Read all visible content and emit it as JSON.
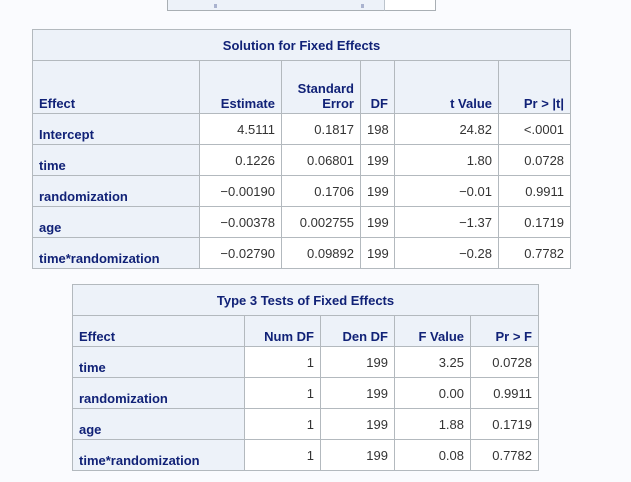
{
  "page": {
    "background": "#FAFBFE"
  },
  "colors": {
    "header_bg": "#EDF2F9",
    "header_text": "#112277",
    "data_bg": "#FFFFFF",
    "data_text": "#333333",
    "border": "#B3B9BE"
  },
  "tables": [
    {
      "title": "Solution for Fixed Effects",
      "columns": [
        "Effect",
        "Estimate",
        "Standard\nError",
        "DF",
        "t Value",
        "Pr > |t|"
      ],
      "rows": [
        [
          "Intercept",
          "4.5111",
          "0.1817",
          "198",
          "24.82",
          "<.0001"
        ],
        [
          "time",
          "0.1226",
          "0.06801",
          "199",
          "1.80",
          "0.0728"
        ],
        [
          "randomization",
          "−0.00190",
          "0.1706",
          "199",
          "−0.01",
          "0.9911"
        ],
        [
          "age",
          "−0.00378",
          "0.002755",
          "199",
          "−1.37",
          "0.1719"
        ],
        [
          "time*randomization",
          "−0.02790",
          "0.09892",
          "199",
          "−0.28",
          "0.7782"
        ]
      ]
    },
    {
      "title": "Type 3 Tests of Fixed Effects",
      "columns": [
        "Effect",
        "Num DF",
        "Den DF",
        "F Value",
        "Pr > F"
      ],
      "rows": [
        [
          "time",
          "1",
          "199",
          "3.25",
          "0.0728"
        ],
        [
          "randomization",
          "1",
          "199",
          "0.00",
          "0.9911"
        ],
        [
          "age",
          "1",
          "199",
          "1.88",
          "0.1719"
        ],
        [
          "time*randomization",
          "1",
          "199",
          "0.08",
          "0.7782"
        ]
      ]
    }
  ]
}
